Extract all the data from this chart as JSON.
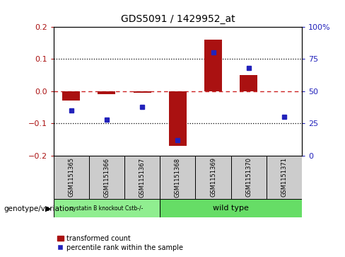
{
  "title": "GDS5091 / 1429952_at",
  "samples": [
    "GSM1151365",
    "GSM1151366",
    "GSM1151367",
    "GSM1151368",
    "GSM1151369",
    "GSM1151370",
    "GSM1151371"
  ],
  "red_values": [
    -0.03,
    -0.01,
    -0.005,
    -0.17,
    0.16,
    0.05,
    0.0
  ],
  "blue_values_pct": [
    35,
    28,
    38,
    12,
    80,
    68,
    30
  ],
  "ylim_left": [
    -0.2,
    0.2
  ],
  "ylim_right": [
    0,
    100
  ],
  "yticks_left": [
    -0.2,
    -0.1,
    0.0,
    0.1,
    0.2
  ],
  "yticks_right": [
    0,
    25,
    50,
    75,
    100
  ],
  "ytick_labels_right": [
    "0",
    "25",
    "50",
    "75",
    "100%"
  ],
  "red_color": "#aa1111",
  "blue_color": "#2222bb",
  "dashed_line_color": "#cc2222",
  "group1_label": "cystatin B knockout Cstb-/-",
  "group2_label": "wild type",
  "group1_count": 3,
  "group2_count": 4,
  "group1_color": "#90ee90",
  "group2_color": "#66dd66",
  "legend_label1": "transformed count",
  "legend_label2": "percentile rank within the sample",
  "sample_bg_color": "#cccccc",
  "xlabel_genotype": "genotype/variation",
  "bar_width": 0.5
}
